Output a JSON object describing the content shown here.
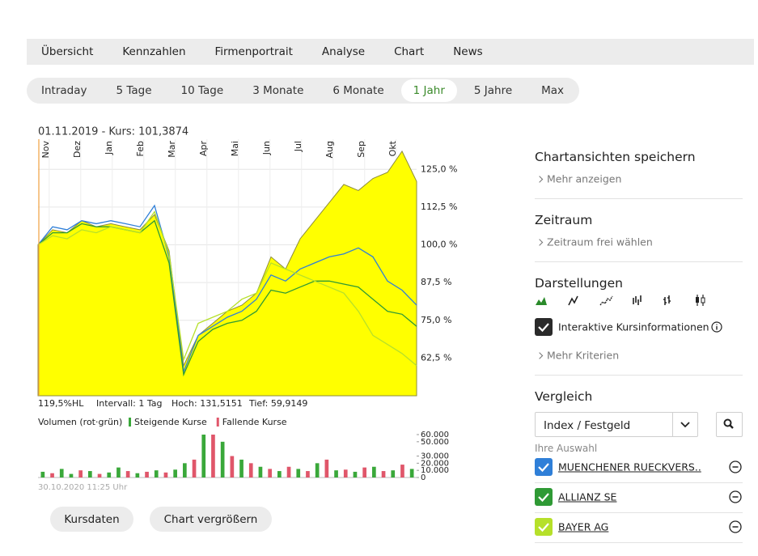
{
  "nav": {
    "tabs": [
      "Übersicht",
      "Kennzahlen",
      "Firmenportrait",
      "Analyse",
      "Chart",
      "News"
    ]
  },
  "ranges": [
    {
      "label": "Intraday"
    },
    {
      "label": "5 Tage"
    },
    {
      "label": "10 Tage"
    },
    {
      "label": "3 Monate"
    },
    {
      "label": "6 Monate"
    },
    {
      "label": "1 Jahr",
      "active": true
    },
    {
      "label": "5 Jahre"
    },
    {
      "label": "Max"
    }
  ],
  "chart_data": [
    {
      "type": "line",
      "title": "01.11.2019  -  Kurs: 101,3874",
      "months": [
        "Nov",
        "Dez",
        "Jan",
        "Feb",
        "Mar",
        "Apr",
        "Mai",
        "Jun",
        "Jul",
        "Aug",
        "Sep",
        "Okt"
      ],
      "series": [
        {
          "color": "#ffff00",
          "area": true,
          "values": [
            100,
            105,
            104,
            108,
            106,
            107,
            106,
            105,
            110,
            98,
            60,
            70,
            74,
            78,
            80,
            84,
            96,
            92,
            102,
            108,
            114,
            120,
            118,
            122,
            124,
            131,
            121
          ]
        },
        {
          "name": "MUENCHENER RUECKVERS..",
          "color": "#2f7fd8",
          "values": [
            100,
            106,
            105,
            108,
            107,
            108,
            107,
            106,
            113,
            96,
            58,
            70,
            73,
            76,
            78,
            82,
            90,
            88,
            92,
            94,
            96,
            97,
            99,
            96,
            88,
            85,
            80
          ]
        },
        {
          "name": "ALLIANZ SE",
          "color": "#2f9a35",
          "values": [
            100,
            104,
            104,
            107,
            106,
            106,
            105,
            104,
            108,
            94,
            57,
            68,
            72,
            74,
            75,
            78,
            85,
            84,
            86,
            88,
            88,
            87,
            86,
            82,
            78,
            77,
            73
          ]
        },
        {
          "name": "BAYER AG",
          "color": "#b6e02a",
          "values": [
            100,
            103,
            102,
            105,
            104,
            106,
            105,
            104,
            111,
            97,
            62,
            74,
            76,
            78,
            82,
            84,
            94,
            92,
            90,
            88,
            86,
            84,
            78,
            70,
            67,
            64,
            60
          ]
        }
      ],
      "ylim": [
        50,
        135
      ],
      "yticks": [
        {
          "value": 62.5,
          "label": "62,5 %"
        },
        {
          "value": 75,
          "label": "75,0 %"
        },
        {
          "value": 87.5,
          "label": "87,5 %"
        },
        {
          "value": 100,
          "label": "100,0 %"
        },
        {
          "value": 112.5,
          "label": "112,5 %"
        },
        {
          "value": 125,
          "label": "125,0 %"
        }
      ],
      "grid": true,
      "stats": [
        "119,5%HL",
        "Intervall: 1 Tag",
        "Hoch: 131,5151",
        "Tief: 59,9149"
      ]
    },
    {
      "type": "bar",
      "title": "Volumen (rot·grün)",
      "stacked": true,
      "series": [
        {
          "name": "Steigende Kurse",
          "color": "#3aa83a",
          "values": [
            8000,
            null,
            12000,
            5000,
            null,
            9000,
            null,
            7000,
            14000,
            null,
            6000,
            null,
            10000,
            null,
            11000,
            20000,
            null,
            60000,
            null,
            50000,
            null,
            25000,
            null,
            15000,
            null,
            9000,
            null,
            12000,
            null,
            20000,
            null,
            10000,
            null,
            8000,
            null,
            15000,
            null,
            10000,
            null,
            12000
          ]
        },
        {
          "name": "Fallende Kurse",
          "color": "#e0566a",
          "values": [
            null,
            6000,
            null,
            null,
            10000,
            null,
            5000,
            null,
            null,
            9000,
            null,
            8000,
            null,
            7000,
            null,
            null,
            25000,
            null,
            60000,
            null,
            30000,
            null,
            20000,
            null,
            12000,
            null,
            15000,
            null,
            9000,
            null,
            25000,
            null,
            11000,
            null,
            14000,
            null,
            9000,
            null,
            18000,
            null
          ]
        }
      ],
      "ylim": [
        0,
        60000
      ],
      "yticks": [
        0,
        {
          "value": 10000,
          "label": "10.000"
        },
        {
          "value": 20000,
          "label": "20.000"
        },
        {
          "value": 30000,
          "label": "30.000"
        },
        {
          "value": 50000,
          "label": "50.000"
        },
        {
          "value": 60000,
          "label": "60.000"
        }
      ],
      "footnote": "30.10.2020 11:25 Uhr"
    }
  ],
  "buttons": [
    "Kursdaten",
    "Chart vergrößern"
  ],
  "sidebar": {
    "save": {
      "title": "Chartansichten speichern",
      "link": "Mehr anzeigen"
    },
    "period": {
      "title": "Zeitraum",
      "link": "Zeitraum frei wählen"
    },
    "display": {
      "title": "Darstellungen",
      "checkbox": "Interaktive Kursinformationen",
      "link": "Mehr Kriterien"
    },
    "compare": {
      "title": "Vergleich",
      "select": "Index / Festgeld",
      "selection_label": "Ihre Auswahl"
    }
  }
}
